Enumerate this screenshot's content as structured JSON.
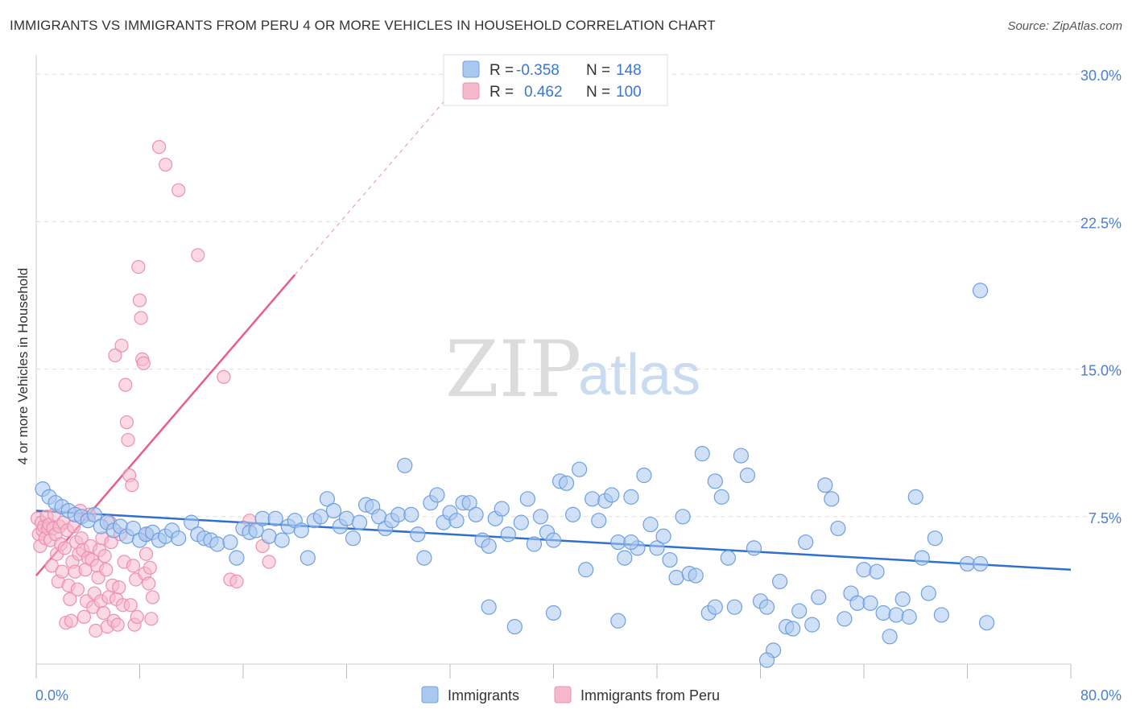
{
  "title": "IMMIGRANTS VS IMMIGRANTS FROM PERU 4 OR MORE VEHICLES IN HOUSEHOLD CORRELATION CHART",
  "source": "Source: ZipAtlas.com",
  "watermark": {
    "zip": "ZIP",
    "atlas": "atlas"
  },
  "colors": {
    "blue_fill": "#a9c8f0",
    "blue_stroke": "#6f9fe0",
    "blue_line": "#2f6fd0",
    "pink_fill": "#f6b9cc",
    "pink_stroke": "#ee8fb0",
    "pink_line": "#e85d8c",
    "tick_text": "#4a7fd4",
    "grid": "#dddddd"
  },
  "stats": {
    "r_label": "R =",
    "n_label": "N =",
    "blue": {
      "r": "-0.358",
      "n": "148"
    },
    "pink": {
      "r": "0.462",
      "n": "100"
    }
  },
  "legend": {
    "immigrants": "Immigrants",
    "peru": "Immigrants from Peru"
  },
  "chart_data": {
    "type": "scatter",
    "title": "IMMIGRANTS VS IMMIGRANTS FROM PERU 4 OR MORE VEHICLES IN HOUSEHOLD CORRELATION CHART",
    "xlabel": "",
    "ylabel": "4 or more Vehicles in Household",
    "xlim": [
      0,
      80
    ],
    "ylim": [
      0,
      30.5
    ],
    "x_tick_labels": [
      "0.0%",
      "80.0%"
    ],
    "y_ticks": [
      7.5,
      15.0,
      22.5,
      30.0
    ],
    "y_tick_labels": [
      "7.5%",
      "15.0%",
      "22.5%",
      "30.0%"
    ],
    "grid": "horizontal dashed",
    "legend_position": "bottom-center",
    "series": [
      {
        "name": "Immigrants",
        "color": "#a9c8f0",
        "r": -0.358,
        "n": 148,
        "trend": {
          "x": [
            0,
            80
          ],
          "y": [
            7.8,
            4.8
          ]
        },
        "points": [
          [
            0.5,
            8.9
          ],
          [
            1.0,
            8.5
          ],
          [
            1.5,
            8.2
          ],
          [
            2.0,
            8.0
          ],
          [
            2.5,
            7.8
          ],
          [
            3.0,
            7.6
          ],
          [
            3.5,
            7.5
          ],
          [
            4.0,
            7.3
          ],
          [
            4.5,
            7.6
          ],
          [
            5.0,
            7.0
          ],
          [
            5.5,
            7.2
          ],
          [
            6.0,
            6.8
          ],
          [
            6.5,
            7.0
          ],
          [
            7.0,
            6.5
          ],
          [
            7.5,
            6.9
          ],
          [
            8.0,
            6.3
          ],
          [
            8.5,
            6.6
          ],
          [
            9.0,
            6.7
          ],
          [
            9.5,
            6.3
          ],
          [
            10.0,
            6.5
          ],
          [
            10.5,
            6.8
          ],
          [
            11.0,
            6.4
          ],
          [
            12.0,
            7.2
          ],
          [
            12.5,
            6.6
          ],
          [
            13.0,
            6.4
          ],
          [
            13.5,
            6.3
          ],
          [
            14.0,
            6.1
          ],
          [
            15.0,
            6.2
          ],
          [
            15.5,
            5.4
          ],
          [
            16.0,
            6.9
          ],
          [
            16.5,
            6.7
          ],
          [
            17.0,
            6.8
          ],
          [
            17.5,
            7.4
          ],
          [
            18.0,
            6.5
          ],
          [
            18.5,
            7.4
          ],
          [
            19.0,
            6.3
          ],
          [
            19.5,
            7.0
          ],
          [
            20.0,
            7.3
          ],
          [
            20.5,
            6.8
          ],
          [
            21.0,
            5.4
          ],
          [
            21.5,
            7.3
          ],
          [
            22.0,
            7.5
          ],
          [
            22.5,
            8.4
          ],
          [
            23.0,
            7.8
          ],
          [
            23.5,
            7.0
          ],
          [
            24.0,
            7.4
          ],
          [
            24.5,
            6.4
          ],
          [
            25.0,
            7.2
          ],
          [
            25.5,
            8.1
          ],
          [
            26.0,
            8.0
          ],
          [
            26.5,
            7.5
          ],
          [
            27.0,
            6.9
          ],
          [
            27.5,
            7.3
          ],
          [
            28.0,
            7.6
          ],
          [
            28.5,
            10.1
          ],
          [
            29.0,
            7.6
          ],
          [
            29.5,
            6.6
          ],
          [
            30.0,
            5.4
          ],
          [
            30.5,
            8.2
          ],
          [
            31.0,
            8.6
          ],
          [
            31.5,
            7.2
          ],
          [
            32.0,
            7.7
          ],
          [
            32.5,
            7.3
          ],
          [
            33.0,
            8.2
          ],
          [
            33.5,
            8.2
          ],
          [
            34.0,
            7.6
          ],
          [
            34.5,
            6.3
          ],
          [
            35.0,
            6.0
          ],
          [
            35.5,
            7.4
          ],
          [
            36.0,
            7.9
          ],
          [
            36.5,
            6.6
          ],
          [
            37.0,
            1.9
          ],
          [
            37.5,
            7.2
          ],
          [
            38.0,
            8.4
          ],
          [
            38.5,
            6.1
          ],
          [
            39.0,
            7.5
          ],
          [
            39.5,
            6.7
          ],
          [
            40.0,
            6.3
          ],
          [
            40.5,
            9.3
          ],
          [
            41.0,
            9.2
          ],
          [
            41.5,
            7.6
          ],
          [
            42.0,
            9.9
          ],
          [
            42.5,
            4.8
          ],
          [
            43.0,
            8.4
          ],
          [
            43.5,
            7.3
          ],
          [
            44.0,
            8.3
          ],
          [
            44.5,
            8.6
          ],
          [
            45.0,
            6.2
          ],
          [
            45.5,
            5.4
          ],
          [
            46.0,
            8.5
          ],
          [
            46.5,
            5.9
          ],
          [
            47.0,
            9.6
          ],
          [
            47.5,
            7.1
          ],
          [
            48.0,
            5.9
          ],
          [
            48.5,
            6.5
          ],
          [
            49.0,
            5.3
          ],
          [
            49.5,
            4.4
          ],
          [
            50.0,
            7.5
          ],
          [
            50.5,
            4.6
          ],
          [
            51.0,
            4.5
          ],
          [
            51.5,
            10.7
          ],
          [
            52.0,
            2.6
          ],
          [
            52.5,
            9.3
          ],
          [
            53.0,
            8.5
          ],
          [
            53.5,
            5.4
          ],
          [
            54.0,
            2.9
          ],
          [
            54.5,
            10.6
          ],
          [
            55.0,
            9.6
          ],
          [
            55.5,
            5.9
          ],
          [
            56.0,
            3.2
          ],
          [
            56.5,
            2.9
          ],
          [
            57.0,
            0.7
          ],
          [
            57.5,
            4.2
          ],
          [
            58.0,
            1.9
          ],
          [
            58.5,
            1.8
          ],
          [
            59.0,
            2.7
          ],
          [
            59.5,
            6.2
          ],
          [
            60.0,
            2.0
          ],
          [
            60.5,
            3.4
          ],
          [
            61.0,
            9.1
          ],
          [
            61.5,
            8.4
          ],
          [
            62.0,
            6.9
          ],
          [
            62.5,
            2.3
          ],
          [
            63.0,
            3.6
          ],
          [
            63.5,
            3.1
          ],
          [
            64.0,
            4.8
          ],
          [
            64.5,
            3.1
          ],
          [
            65.0,
            4.7
          ],
          [
            65.5,
            2.6
          ],
          [
            66.0,
            1.4
          ],
          [
            66.5,
            2.5
          ],
          [
            67.0,
            3.3
          ],
          [
            67.5,
            2.4
          ],
          [
            68.0,
            8.5
          ],
          [
            68.5,
            5.4
          ],
          [
            69.0,
            3.6
          ],
          [
            69.5,
            6.4
          ],
          [
            70.0,
            2.5
          ],
          [
            72.0,
            5.1
          ],
          [
            73.0,
            5.1
          ],
          [
            73.5,
            2.1
          ],
          [
            56.5,
            0.2
          ],
          [
            52.5,
            2.9
          ],
          [
            46.0,
            6.2
          ],
          [
            45.0,
            2.2
          ],
          [
            40.0,
            2.6
          ],
          [
            35.0,
            2.9
          ],
          [
            73.0,
            19.0
          ]
        ]
      },
      {
        "name": "Immigrants from Peru",
        "color": "#f6b9cc",
        "r": 0.462,
        "n": 100,
        "trend": {
          "x": [
            0,
            20
          ],
          "y": [
            4.5,
            19.8
          ]
        },
        "points": [
          [
            0.1,
            7.4
          ],
          [
            0.2,
            6.6
          ],
          [
            0.3,
            6.0
          ],
          [
            0.4,
            7.2
          ],
          [
            0.5,
            6.8
          ],
          [
            0.6,
            7.0
          ],
          [
            0.7,
            6.4
          ],
          [
            0.8,
            7.5
          ],
          [
            0.9,
            6.9
          ],
          [
            1.0,
            7.1
          ],
          [
            1.1,
            6.3
          ],
          [
            1.2,
            5.0
          ],
          [
            1.3,
            6.9
          ],
          [
            1.4,
            7.6
          ],
          [
            1.5,
            6.6
          ],
          [
            1.6,
            5.6
          ],
          [
            1.7,
            4.2
          ],
          [
            1.8,
            7.0
          ],
          [
            1.9,
            6.1
          ],
          [
            2.0,
            4.7
          ],
          [
            2.1,
            7.2
          ],
          [
            2.2,
            5.9
          ],
          [
            2.3,
            2.1
          ],
          [
            2.4,
            6.8
          ],
          [
            2.5,
            4.0
          ],
          [
            2.6,
            3.3
          ],
          [
            2.7,
            2.2
          ],
          [
            2.8,
            5.2
          ],
          [
            2.9,
            7.0
          ],
          [
            3.0,
            4.7
          ],
          [
            3.1,
            6.2
          ],
          [
            3.2,
            3.8
          ],
          [
            3.3,
            5.6
          ],
          [
            3.4,
            7.8
          ],
          [
            3.5,
            6.4
          ],
          [
            3.6,
            5.8
          ],
          [
            3.7,
            2.4
          ],
          [
            3.8,
            4.8
          ],
          [
            3.9,
            3.2
          ],
          [
            4.0,
            5.4
          ],
          [
            4.1,
            7.6
          ],
          [
            4.2,
            6.0
          ],
          [
            4.3,
            5.3
          ],
          [
            4.4,
            2.9
          ],
          [
            4.5,
            3.6
          ],
          [
            4.6,
            1.7
          ],
          [
            4.7,
            5.0
          ],
          [
            4.8,
            4.4
          ],
          [
            4.9,
            5.8
          ],
          [
            5.0,
            3.2
          ],
          [
            5.1,
            6.4
          ],
          [
            5.2,
            2.6
          ],
          [
            5.3,
            5.5
          ],
          [
            5.4,
            4.8
          ],
          [
            5.5,
            1.9
          ],
          [
            5.6,
            3.4
          ],
          [
            5.7,
            7.2
          ],
          [
            5.8,
            6.2
          ],
          [
            5.9,
            4.0
          ],
          [
            6.0,
            2.2
          ],
          [
            6.1,
            15.7
          ],
          [
            6.2,
            3.3
          ],
          [
            6.3,
            2.0
          ],
          [
            6.4,
            3.9
          ],
          [
            6.5,
            6.6
          ],
          [
            6.6,
            16.2
          ],
          [
            6.7,
            3.0
          ],
          [
            6.8,
            5.2
          ],
          [
            6.9,
            14.2
          ],
          [
            7.0,
            12.3
          ],
          [
            7.1,
            11.4
          ],
          [
            7.2,
            9.6
          ],
          [
            7.3,
            3.0
          ],
          [
            7.4,
            9.1
          ],
          [
            7.5,
            5.0
          ],
          [
            7.6,
            2.0
          ],
          [
            7.7,
            4.3
          ],
          [
            7.8,
            2.4
          ],
          [
            7.9,
            20.2
          ],
          [
            8.0,
            18.5
          ],
          [
            8.1,
            17.6
          ],
          [
            8.2,
            15.5
          ],
          [
            8.3,
            15.3
          ],
          [
            8.4,
            4.6
          ],
          [
            8.5,
            5.6
          ],
          [
            8.6,
            6.6
          ],
          [
            8.7,
            4.1
          ],
          [
            8.8,
            4.9
          ],
          [
            8.9,
            2.3
          ],
          [
            9.0,
            3.4
          ],
          [
            9.5,
            26.3
          ],
          [
            10.0,
            25.4
          ],
          [
            11.0,
            24.1
          ],
          [
            12.5,
            20.8
          ],
          [
            14.5,
            14.6
          ],
          [
            15.0,
            4.3
          ],
          [
            15.5,
            4.2
          ],
          [
            16.5,
            7.3
          ],
          [
            17.5,
            6.0
          ],
          [
            18.0,
            5.2
          ]
        ]
      }
    ]
  }
}
